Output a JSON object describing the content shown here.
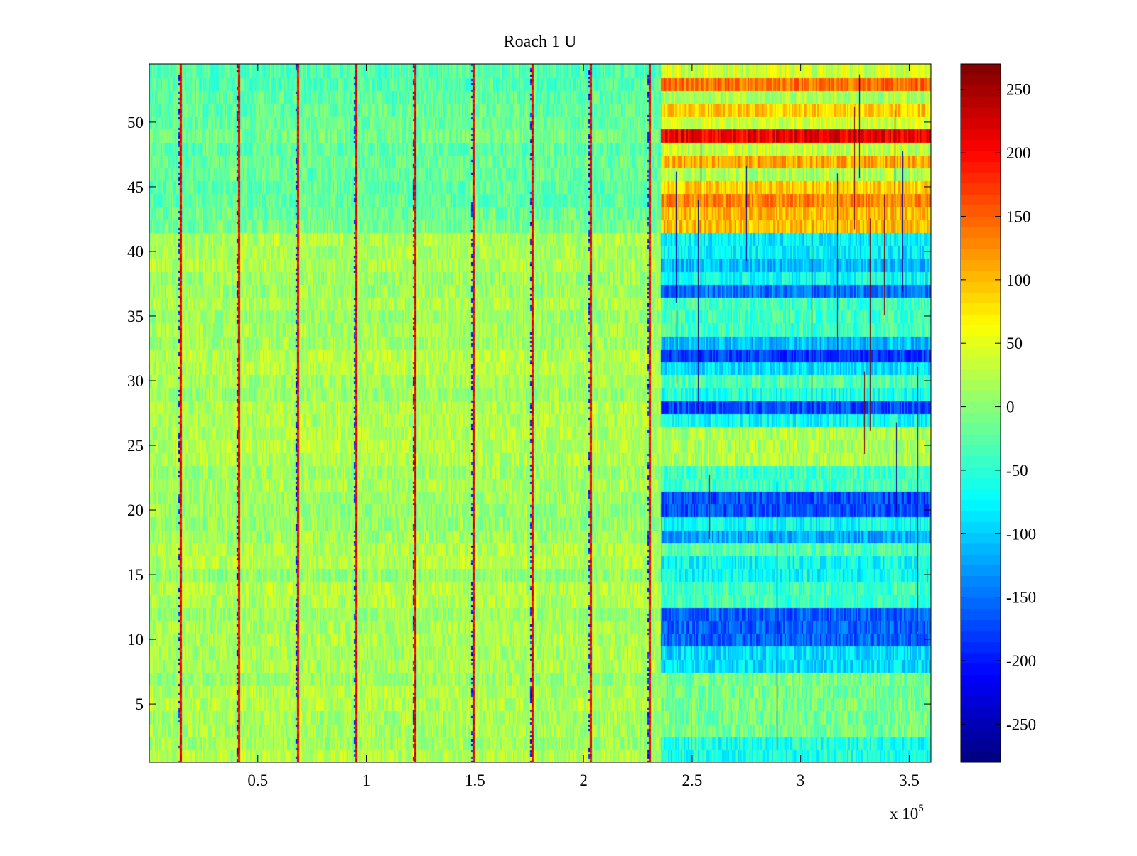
{
  "chart_data": {
    "type": "heatmap",
    "title": "Roach 1 U",
    "xlabel": "",
    "ylabel": "",
    "colormap": "jet",
    "x_exponent_label": "x 10",
    "x_exponent_power": "5",
    "xlim": [
      0,
      3.6
    ],
    "ylim": [
      0.5,
      54.5
    ],
    "x_ticks": [
      {
        "value": 0.5,
        "label": "0.5"
      },
      {
        "value": 1,
        "label": "1"
      },
      {
        "value": 1.5,
        "label": "1.5"
      },
      {
        "value": 2,
        "label": "2"
      },
      {
        "value": 2.5,
        "label": "2.5"
      },
      {
        "value": 3,
        "label": "3"
      },
      {
        "value": 3.5,
        "label": "3.5"
      }
    ],
    "y_ticks": [
      {
        "value": 5,
        "label": "5"
      },
      {
        "value": 10,
        "label": "10"
      },
      {
        "value": 15,
        "label": "15"
      },
      {
        "value": 20,
        "label": "20"
      },
      {
        "value": 25,
        "label": "25"
      },
      {
        "value": 30,
        "label": "30"
      },
      {
        "value": 35,
        "label": "35"
      },
      {
        "value": 40,
        "label": "40"
      },
      {
        "value": 45,
        "label": "45"
      },
      {
        "value": 50,
        "label": "50"
      }
    ],
    "colorbar": {
      "range": [
        -280,
        270
      ],
      "ticks": [
        {
          "value": 250,
          "label": "250"
        },
        {
          "value": 200,
          "label": "200"
        },
        {
          "value": 150,
          "label": "150"
        },
        {
          "value": 100,
          "label": "100"
        },
        {
          "value": 50,
          "label": "50"
        },
        {
          "value": 0,
          "label": "0"
        },
        {
          "value": -50,
          "label": "-50"
        },
        {
          "value": -100,
          "label": "-100"
        },
        {
          "value": -150,
          "label": "-150"
        },
        {
          "value": -200,
          "label": "-200"
        },
        {
          "value": -250,
          "label": "-250"
        }
      ]
    },
    "rows": 54,
    "stimulus_onset_x": 2.35,
    "pre_stimulus_level": {
      "rows_1_to_41": 15,
      "rows_42_to_54": -20
    },
    "spike_columns_x": [
      0.14,
      0.41,
      0.68,
      0.95,
      1.22,
      1.49,
      1.76,
      2.03,
      2.3
    ],
    "post_stimulus_row_levels": [
      {
        "rows": [
          1,
          2
        ],
        "value": -60
      },
      {
        "rows": [
          3,
          7
        ],
        "value": -10
      },
      {
        "rows": [
          8,
          9
        ],
        "value": -90
      },
      {
        "rows": [
          10,
          12
        ],
        "value": -160
      },
      {
        "rows": [
          13,
          14
        ],
        "value": -40
      },
      {
        "rows": [
          15,
          16
        ],
        "value": -70
      },
      {
        "rows": [
          17
        ],
        "value": -30
      },
      {
        "rows": [
          18
        ],
        "value": -120
      },
      {
        "rows": [
          19
        ],
        "value": -70
      },
      {
        "rows": [
          20,
          21
        ],
        "value": -170
      },
      {
        "rows": [
          22,
          23
        ],
        "value": -40
      },
      {
        "rows": [
          24,
          26
        ],
        "value": 20
      },
      {
        "rows": [
          27
        ],
        "value": -70
      },
      {
        "rows": [
          28
        ],
        "value": -170
      },
      {
        "rows": [
          29
        ],
        "value": -60
      },
      {
        "rows": [
          30
        ],
        "value": -30
      },
      {
        "rows": [
          31
        ],
        "value": -90
      },
      {
        "rows": [
          32
        ],
        "value": -180
      },
      {
        "rows": [
          33
        ],
        "value": -110
      },
      {
        "rows": [
          34,
          36
        ],
        "value": -40
      },
      {
        "rows": [
          37
        ],
        "value": -150
      },
      {
        "rows": [
          38
        ],
        "value": -70
      },
      {
        "rows": [
          39
        ],
        "value": -110
      },
      {
        "rows": [
          40,
          41
        ],
        "value": -80
      },
      {
        "rows": [
          42,
          43
        ],
        "value": 100
      },
      {
        "rows": [
          44
        ],
        "value": 130
      },
      {
        "rows": [
          45
        ],
        "value": 90
      },
      {
        "rows": [
          46
        ],
        "value": 20
      },
      {
        "rows": [
          47
        ],
        "value": 110
      },
      {
        "rows": [
          48
        ],
        "value": 30
      },
      {
        "rows": [
          49
        ],
        "value": 210
      },
      {
        "rows": [
          50
        ],
        "value": 40
      },
      {
        "rows": [
          51
        ],
        "value": 90
      },
      {
        "rows": [
          52
        ],
        "value": 20
      },
      {
        "rows": [
          53
        ],
        "value": 140
      },
      {
        "rows": [
          54
        ],
        "value": 40
      }
    ]
  }
}
